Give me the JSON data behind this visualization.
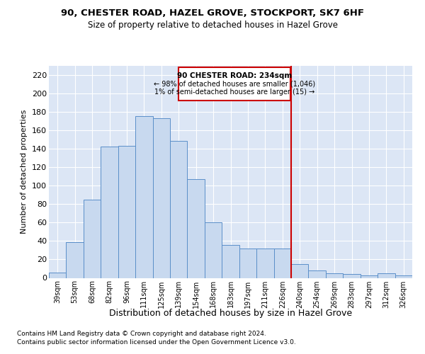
{
  "title1": "90, CHESTER ROAD, HAZEL GROVE, STOCKPORT, SK7 6HF",
  "title2": "Size of property relative to detached houses in Hazel Grove",
  "xlabel": "Distribution of detached houses by size in Hazel Grove",
  "ylabel": "Number of detached properties",
  "categories": [
    "39sqm",
    "53sqm",
    "68sqm",
    "82sqm",
    "96sqm",
    "111sqm",
    "125sqm",
    "139sqm",
    "154sqm",
    "168sqm",
    "183sqm",
    "197sqm",
    "211sqm",
    "226sqm",
    "240sqm",
    "254sqm",
    "269sqm",
    "283sqm",
    "297sqm",
    "312sqm",
    "326sqm"
  ],
  "values": [
    6,
    39,
    85,
    142,
    143,
    175,
    173,
    148,
    107,
    60,
    36,
    32,
    32,
    32,
    15,
    8,
    5,
    4,
    3,
    5,
    3
  ],
  "bar_color": "#c8d9ef",
  "bar_edge_color": "#5b8fc9",
  "vline_color": "#cc0000",
  "annotation_line1": "90 CHESTER ROAD: 234sqm",
  "annotation_line2": "← 98% of detached houses are smaller (1,046)",
  "annotation_line3": "1% of semi-detached houses are larger (15) →",
  "annotation_box_color": "#cc0000",
  "footer1": "Contains HM Land Registry data © Crown copyright and database right 2024.",
  "footer2": "Contains public sector information licensed under the Open Government Licence v3.0.",
  "ylim": [
    0,
    230
  ],
  "yticks": [
    0,
    20,
    40,
    60,
    80,
    100,
    120,
    140,
    160,
    180,
    200,
    220
  ],
  "bg_color": "#dce6f5",
  "fig_bg_color": "#ffffff",
  "grid_color": "#ffffff"
}
